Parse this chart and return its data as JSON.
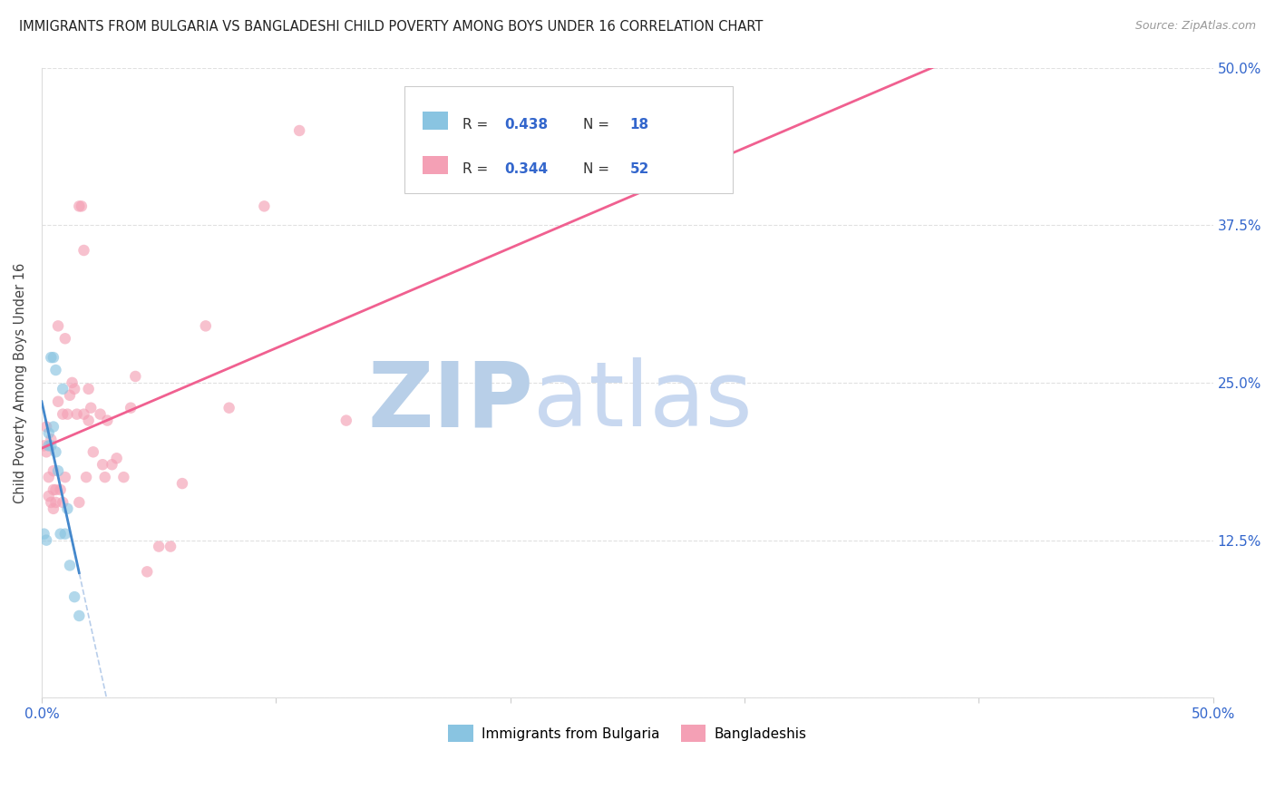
{
  "title": "IMMIGRANTS FROM BULGARIA VS BANGLADESHI CHILD POVERTY AMONG BOYS UNDER 16 CORRELATION CHART",
  "source": "Source: ZipAtlas.com",
  "ylabel": "Child Poverty Among Boys Under 16",
  "x_min": 0.0,
  "x_max": 0.5,
  "y_min": 0.0,
  "y_max": 0.5,
  "color_bulgaria": "#89c4e1",
  "color_bangladesh": "#f4a0b5",
  "color_trendline_bulgaria": "#4488cc",
  "color_trendline_bangladesh": "#f06090",
  "color_dashed_line": "#b0c8e8",
  "background_color": "#ffffff",
  "grid_color": "#e0e0e0",
  "bulgaria_x": [
    0.001,
    0.002,
    0.003,
    0.003,
    0.004,
    0.004,
    0.005,
    0.005,
    0.006,
    0.006,
    0.007,
    0.008,
    0.009,
    0.01,
    0.011,
    0.012,
    0.014,
    0.016
  ],
  "bulgaria_y": [
    0.13,
    0.125,
    0.2,
    0.21,
    0.2,
    0.27,
    0.27,
    0.215,
    0.26,
    0.195,
    0.18,
    0.13,
    0.245,
    0.13,
    0.15,
    0.105,
    0.08,
    0.065
  ],
  "bangladesh_x": [
    0.001,
    0.002,
    0.002,
    0.003,
    0.003,
    0.004,
    0.004,
    0.005,
    0.005,
    0.005,
    0.006,
    0.006,
    0.007,
    0.007,
    0.008,
    0.009,
    0.009,
    0.01,
    0.01,
    0.011,
    0.012,
    0.013,
    0.014,
    0.015,
    0.016,
    0.016,
    0.017,
    0.018,
    0.018,
    0.019,
    0.02,
    0.02,
    0.021,
    0.022,
    0.025,
    0.026,
    0.027,
    0.028,
    0.03,
    0.032,
    0.035,
    0.038,
    0.04,
    0.045,
    0.05,
    0.055,
    0.06,
    0.07,
    0.08,
    0.095,
    0.11,
    0.13
  ],
  "bangladesh_y": [
    0.2,
    0.195,
    0.215,
    0.16,
    0.175,
    0.155,
    0.205,
    0.15,
    0.165,
    0.18,
    0.155,
    0.165,
    0.235,
    0.295,
    0.165,
    0.225,
    0.155,
    0.175,
    0.285,
    0.225,
    0.24,
    0.25,
    0.245,
    0.225,
    0.39,
    0.155,
    0.39,
    0.355,
    0.225,
    0.175,
    0.22,
    0.245,
    0.23,
    0.195,
    0.225,
    0.185,
    0.175,
    0.22,
    0.185,
    0.19,
    0.175,
    0.23,
    0.255,
    0.1,
    0.12,
    0.12,
    0.17,
    0.295,
    0.23,
    0.39,
    0.45,
    0.22
  ],
  "marker_size": 9,
  "alpha": 0.65,
  "watermark_text1": "ZIP",
  "watermark_text2": "atlas",
  "watermark_color1": "#b8cfe8",
  "watermark_color2": "#c8d8f0",
  "watermark_fontsize": 72,
  "legend_R1": "0.438",
  "legend_N1": "18",
  "legend_R2": "0.344",
  "legend_N2": "52",
  "legend_label1": "Immigrants from Bulgaria",
  "legend_label2": "Bangladeshis"
}
